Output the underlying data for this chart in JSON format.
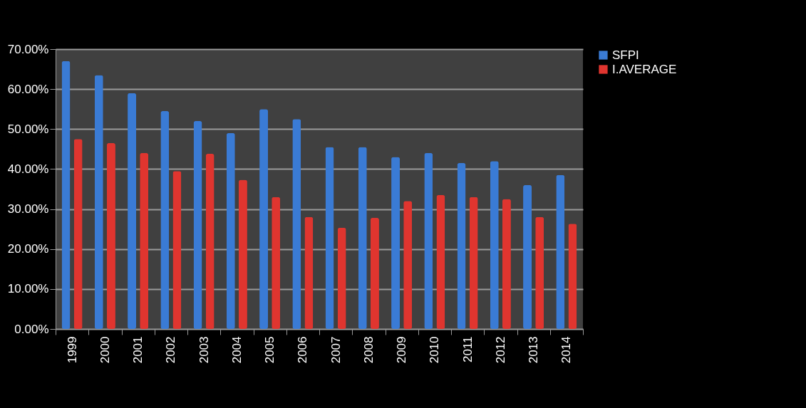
{
  "chart_data": {
    "type": "bar",
    "categories": [
      "1999",
      "2000",
      "2001",
      "2002",
      "2003",
      "2004",
      "2005",
      "2006",
      "2007",
      "2008",
      "2009",
      "2010",
      "2011",
      "2012",
      "2013",
      "2014"
    ],
    "series": [
      {
        "name": "SFPI",
        "color": "#3a7bd5",
        "values": [
          67,
          63.5,
          59,
          54.5,
          52,
          49,
          55,
          52.5,
          45.5,
          45.5,
          43,
          44,
          41.5,
          42,
          36,
          38.5
        ]
      },
      {
        "name": "I.AVERAGE",
        "color": "#e0352f",
        "values": [
          47.5,
          46.5,
          44,
          39.5,
          43.8,
          37.3,
          33,
          28,
          25.3,
          27.8,
          32,
          33.5,
          33,
          32.5,
          28,
          26.3
        ]
      }
    ],
    "ylim": [
      0,
      70
    ],
    "yticks": [
      {
        "value": 0,
        "label": "0.00%"
      },
      {
        "value": 10,
        "label": "10.00%"
      },
      {
        "value": 20,
        "label": "20.00%"
      },
      {
        "value": 30,
        "label": "30.00%"
      },
      {
        "value": 40,
        "label": "40.00%"
      },
      {
        "value": 50,
        "label": "50.00%"
      },
      {
        "value": 60,
        "label": "60.00%"
      },
      {
        "value": 70,
        "label": "70.00%"
      }
    ],
    "grid": "y",
    "legend": "right"
  }
}
